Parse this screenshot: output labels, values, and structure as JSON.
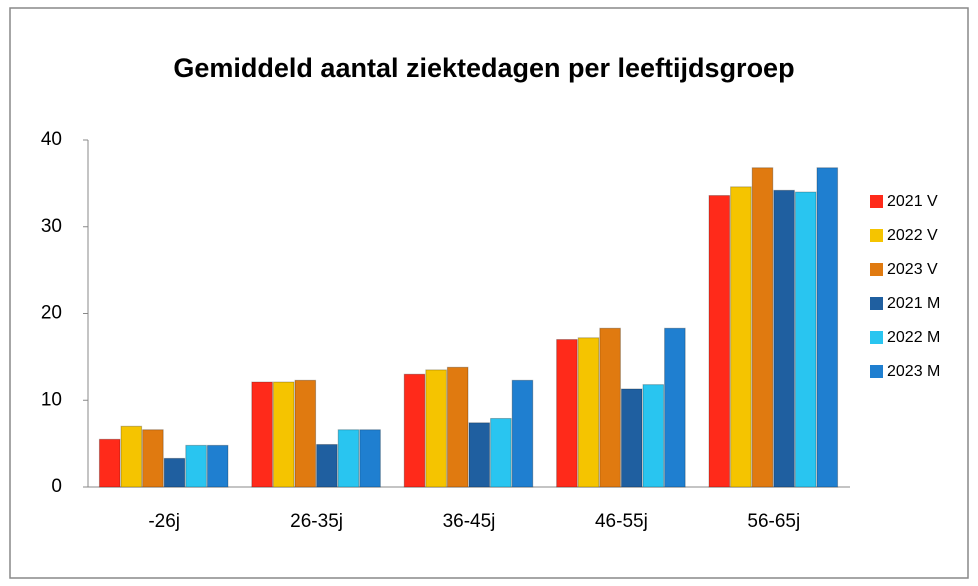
{
  "chart_data": {
    "type": "bar",
    "title": "Gemiddeld aantal ziektedagen per leeftijdsgroep",
    "categories": [
      "-26j",
      "26-35j",
      "36-45j",
      "46-55j",
      "56-65j"
    ],
    "series": [
      {
        "name": "2021 V",
        "color": "#ff2a1a",
        "values": [
          5.5,
          12.1,
          13.0,
          17.0,
          33.6
        ]
      },
      {
        "name": "2022 V",
        "color": "#f5c400",
        "values": [
          7.0,
          12.1,
          13.5,
          17.2,
          34.6
        ]
      },
      {
        "name": "2023 V",
        "color": "#e07a10",
        "values": [
          6.6,
          12.3,
          13.8,
          18.3,
          36.8
        ]
      },
      {
        "name": "2021 M",
        "color": "#1f5fa0",
        "values": [
          3.3,
          4.9,
          7.4,
          11.3,
          34.2
        ]
      },
      {
        "name": "2022 M",
        "color": "#29c5f0",
        "values": [
          4.8,
          6.6,
          7.9,
          11.8,
          34.0
        ]
      },
      {
        "name": "2023 M",
        "color": "#1f7fd0",
        "values": [
          4.8,
          6.6,
          12.3,
          18.3,
          36.8
        ]
      }
    ],
    "ylim": [
      0,
      40
    ],
    "yticks": [
      0,
      10,
      20,
      30,
      40
    ],
    "grid": false,
    "legend": "right"
  }
}
